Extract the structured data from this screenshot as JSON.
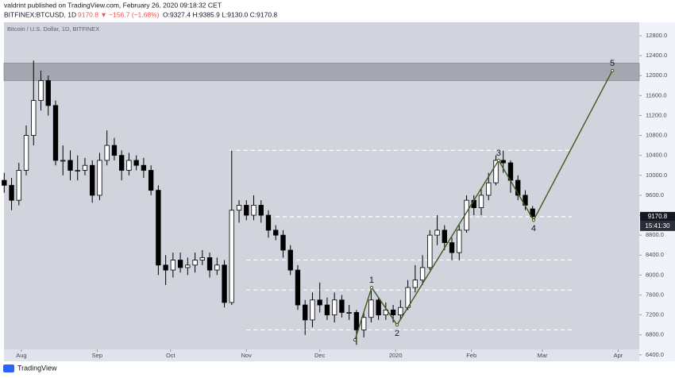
{
  "header": {
    "published": "valdrint published on TradingView.com, February 26, 2020 09:18:32 CET",
    "symbol": "BITFINEX:BTCUSD, 1D",
    "change": "9170.8 ▼ −156.7 (−1.68%)",
    "ohlc": "O:9327.4 H:9385.9 L:9130.0 C:9170.8"
  },
  "footer": {
    "brand": "TradingView"
  },
  "chart_data": {
    "type": "candlestick",
    "subtitle": "Bitcoin / U.S. Dollar, 1D, BITFINEX",
    "x": [
      -7,
      -4,
      -1,
      2,
      5,
      8,
      11,
      14,
      17,
      20,
      23,
      26,
      29,
      32,
      35,
      38,
      41,
      44,
      47,
      50,
      53,
      56,
      59,
      62,
      65,
      68,
      71,
      74,
      77,
      80,
      83,
      86,
      89,
      92,
      95,
      98,
      101,
      104,
      107,
      110,
      113,
      116,
      119,
      122,
      125,
      128,
      131,
      134,
      137,
      140,
      143,
      146,
      149,
      152,
      155,
      158,
      161,
      164,
      167,
      170,
      173,
      176,
      179,
      182,
      185,
      188,
      191,
      194,
      197,
      200,
      203,
      206,
      209
    ],
    "open": [
      9900,
      9800,
      9500,
      10100,
      10800,
      11500,
      11900,
      11400,
      10300,
      10300,
      10100,
      10100,
      10200,
      9600,
      10300,
      10600,
      10400,
      10100,
      10300,
      10200,
      10100,
      9700,
      8200,
      8100,
      8300,
      8150,
      8200,
      8300,
      8350,
      8100,
      8200,
      7450,
      9300,
      9400,
      9200,
      9400,
      9200,
      8900,
      8800,
      8500,
      8100,
      7400,
      7100,
      7500,
      7400,
      7200,
      7500,
      7250,
      7250,
      6900,
      7150,
      7500,
      7200,
      7300,
      7200,
      7350,
      7750,
      7900,
      8150,
      8800,
      8900,
      8650,
      8450,
      8900,
      9500,
      9350,
      9600,
      9850,
      10300,
      10250,
      9900,
      9600,
      9327.4
    ],
    "high": [
      10050,
      9950,
      10250,
      11000,
      12300,
      12100,
      12000,
      11500,
      10600,
      10500,
      10400,
      10350,
      10300,
      10450,
      10900,
      10750,
      10500,
      10450,
      10400,
      10350,
      10200,
      9800,
      8400,
      8450,
      8450,
      8350,
      8450,
      8500,
      8450,
      8350,
      8300,
      10500,
      9500,
      9500,
      9600,
      9500,
      9300,
      9000,
      8900,
      8600,
      8200,
      7500,
      7650,
      7850,
      7550,
      7650,
      7600,
      7400,
      7300,
      7250,
      7700,
      7550,
      7450,
      7400,
      7500,
      7900,
      8200,
      8400,
      8900,
      9200,
      9000,
      8750,
      9000,
      9600,
      9600,
      9750,
      10050,
      10400,
      10500,
      10300,
      10000,
      9700,
      9385.9
    ],
    "low": [
      9650,
      9300,
      9400,
      10000,
      10600,
      11300,
      11200,
      10200,
      10000,
      9900,
      9900,
      10000,
      9450,
      9500,
      10200,
      10300,
      9900,
      10000,
      10100,
      9950,
      9600,
      8000,
      7800,
      7950,
      8050,
      8000,
      8050,
      8200,
      7950,
      8000,
      7350,
      7400,
      9050,
      9100,
      9100,
      9050,
      8750,
      8700,
      8350,
      8000,
      7300,
      6800,
      6950,
      7250,
      7100,
      7050,
      7150,
      7100,
      6600,
      6750,
      7050,
      7100,
      7100,
      7050,
      7100,
      7300,
      7650,
      7800,
      8100,
      8600,
      8500,
      8300,
      8300,
      8850,
      9200,
      9200,
      9500,
      9800,
      10050,
      9650,
      9500,
      9300,
      9130.0
    ],
    "close": [
      9800,
      9500,
      10100,
      10800,
      11500,
      11900,
      11400,
      10300,
      10300,
      10100,
      10100,
      10200,
      9600,
      10300,
      10600,
      10400,
      10100,
      10300,
      10200,
      10100,
      9700,
      8200,
      8100,
      8300,
      8150,
      8200,
      8300,
      8350,
      8100,
      8200,
      7450,
      9300,
      9400,
      9200,
      9400,
      9200,
      8900,
      8800,
      8500,
      8100,
      7400,
      7100,
      7500,
      7400,
      7200,
      7500,
      7250,
      7250,
      6900,
      7150,
      7500,
      7200,
      7300,
      7200,
      7350,
      7750,
      7900,
      8150,
      8800,
      8900,
      8650,
      8450,
      8900,
      9500,
      9350,
      9600,
      9850,
      10300,
      10250,
      9900,
      9600,
      9400,
      9170.8
    ],
    "up_color": "#ffffff",
    "down_color": "#000000",
    "xlim": [
      -7.1,
      252.6
    ],
    "xticks": [
      {
        "value": 0,
        "label": "Aug"
      },
      {
        "value": 31,
        "label": "Sep"
      },
      {
        "value": 61,
        "label": "Oct"
      },
      {
        "value": 92,
        "label": "Nov"
      },
      {
        "value": 122,
        "label": "Dec"
      },
      {
        "value": 153,
        "label": "2020"
      },
      {
        "value": 184,
        "label": "Feb"
      },
      {
        "value": 213,
        "label": "Mar"
      },
      {
        "value": 244,
        "label": "Apr"
      }
    ],
    "ylim": [
      6270,
      13070
    ],
    "yticks": [
      {
        "value": 6400,
        "label": "6400.0"
      },
      {
        "value": 6800,
        "label": "6800.0"
      },
      {
        "value": 7200,
        "label": "7200.0"
      },
      {
        "value": 7600,
        "label": "7600.0"
      },
      {
        "value": 8000,
        "label": "8000.0"
      },
      {
        "value": 8400,
        "label": "8400.0"
      },
      {
        "value": 8800,
        "label": "8800.0"
      },
      {
        "value": 9200,
        "label": "9200.0"
      },
      {
        "value": 9600,
        "label": "9600.0"
      },
      {
        "value": 10000,
        "label": "10000.0"
      },
      {
        "value": 10400,
        "label": "10400.0"
      },
      {
        "value": 10800,
        "label": "10800.0"
      },
      {
        "value": 11200,
        "label": "11200.0"
      },
      {
        "value": 11600,
        "label": "11600.0"
      },
      {
        "value": 12000,
        "label": "12000.0"
      },
      {
        "value": 12400,
        "label": "12400.0"
      },
      {
        "value": 12800,
        "label": "12800.0"
      }
    ],
    "grid": false,
    "zone": [
      11900,
      12250
    ],
    "zone_color": "#9598a1",
    "levels": [
      {
        "y": 10500,
        "x": [
          85,
          225
        ]
      },
      {
        "y": 9170.8,
        "x": [
          101,
          225
        ]
      },
      {
        "y": 8300,
        "x": [
          92,
          225
        ]
      },
      {
        "y": 7700,
        "x": [
          92,
          225
        ]
      },
      {
        "y": 6900,
        "x": [
          92,
          225
        ]
      }
    ],
    "wave": {
      "color": "#3d5a1a",
      "labels": [
        "1",
        "2",
        "3",
        "4",
        "5"
      ],
      "x": [
        136.4,
        143.2,
        153.6,
        195.1,
        209.4,
        241.6
      ],
      "y": [
        6700,
        7750,
        7000,
        10300,
        9100,
        12100
      ]
    },
    "last_price": 9170.8,
    "countdown": "15:41:30"
  }
}
